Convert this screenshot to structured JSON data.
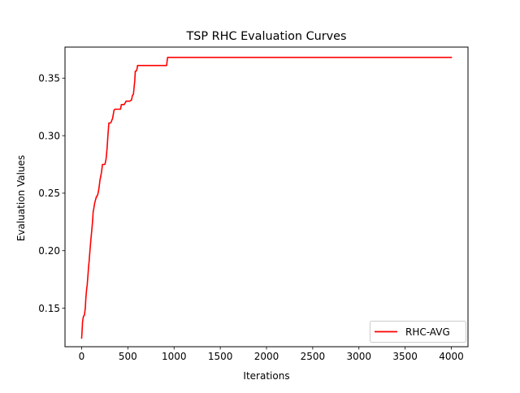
{
  "chart_data": {
    "type": "line",
    "title": "TSP RHC Evaluation Curves",
    "xlabel": "Iterations",
    "ylabel": "Evaluation Values",
    "xlim": [
      -180,
      4180
    ],
    "ylim": [
      0.1165,
      0.377
    ],
    "xticks": [
      0,
      500,
      1000,
      1500,
      2000,
      2500,
      3000,
      3500,
      4000
    ],
    "xtick_labels": [
      "0",
      "500",
      "1000",
      "1500",
      "2000",
      "2500",
      "3000",
      "3500",
      "4000"
    ],
    "yticks": [
      0.15,
      0.2,
      0.25,
      0.3,
      0.35
    ],
    "ytick_labels": [
      "0.15",
      "0.20",
      "0.25",
      "0.30",
      "0.35"
    ],
    "grid": false,
    "legend_position": "lower-right",
    "series": [
      {
        "name": "RHC-AVG",
        "color": "#ff0000",
        "x": [
          0,
          5,
          10,
          15,
          20,
          30,
          40,
          45,
          50,
          55,
          60,
          70,
          75,
          80,
          90,
          100,
          110,
          120,
          125,
          130,
          140,
          150,
          160,
          165,
          175,
          185,
          190,
          200,
          205,
          215,
          225,
          230,
          240,
          250,
          255,
          265,
          275,
          285,
          295,
          305,
          315,
          330,
          335,
          350,
          360,
          375,
          385,
          400,
          410,
          420,
          430,
          450,
          460,
          475,
          480,
          500,
          510,
          520,
          540,
          550,
          560,
          575,
          580,
          590,
          600,
          605,
          615,
          625,
          630,
          640,
          650,
          700,
          760,
          820,
          880,
          920,
          925,
          930,
          1000,
          1500,
          2000,
          2500,
          3000,
          3500,
          4000
        ],
        "values": [
          0.124,
          0.13,
          0.138,
          0.141,
          0.143,
          0.144,
          0.15,
          0.158,
          0.163,
          0.167,
          0.17,
          0.18,
          0.186,
          0.19,
          0.2,
          0.21,
          0.218,
          0.227,
          0.234,
          0.236,
          0.241,
          0.244,
          0.247,
          0.247,
          0.249,
          0.253,
          0.256,
          0.262,
          0.264,
          0.268,
          0.275,
          0.275,
          0.275,
          0.275,
          0.276,
          0.28,
          0.289,
          0.301,
          0.311,
          0.311,
          0.311,
          0.314,
          0.315,
          0.322,
          0.323,
          0.323,
          0.323,
          0.323,
          0.323,
          0.323,
          0.327,
          0.327,
          0.327,
          0.329,
          0.33,
          0.33,
          0.33,
          0.33,
          0.331,
          0.335,
          0.336,
          0.348,
          0.356,
          0.356,
          0.358,
          0.361,
          0.361,
          0.361,
          0.361,
          0.361,
          0.361,
          0.361,
          0.361,
          0.361,
          0.361,
          0.361,
          0.365,
          0.368,
          0.368,
          0.368,
          0.368,
          0.368,
          0.368,
          0.368,
          0.368
        ]
      }
    ]
  }
}
